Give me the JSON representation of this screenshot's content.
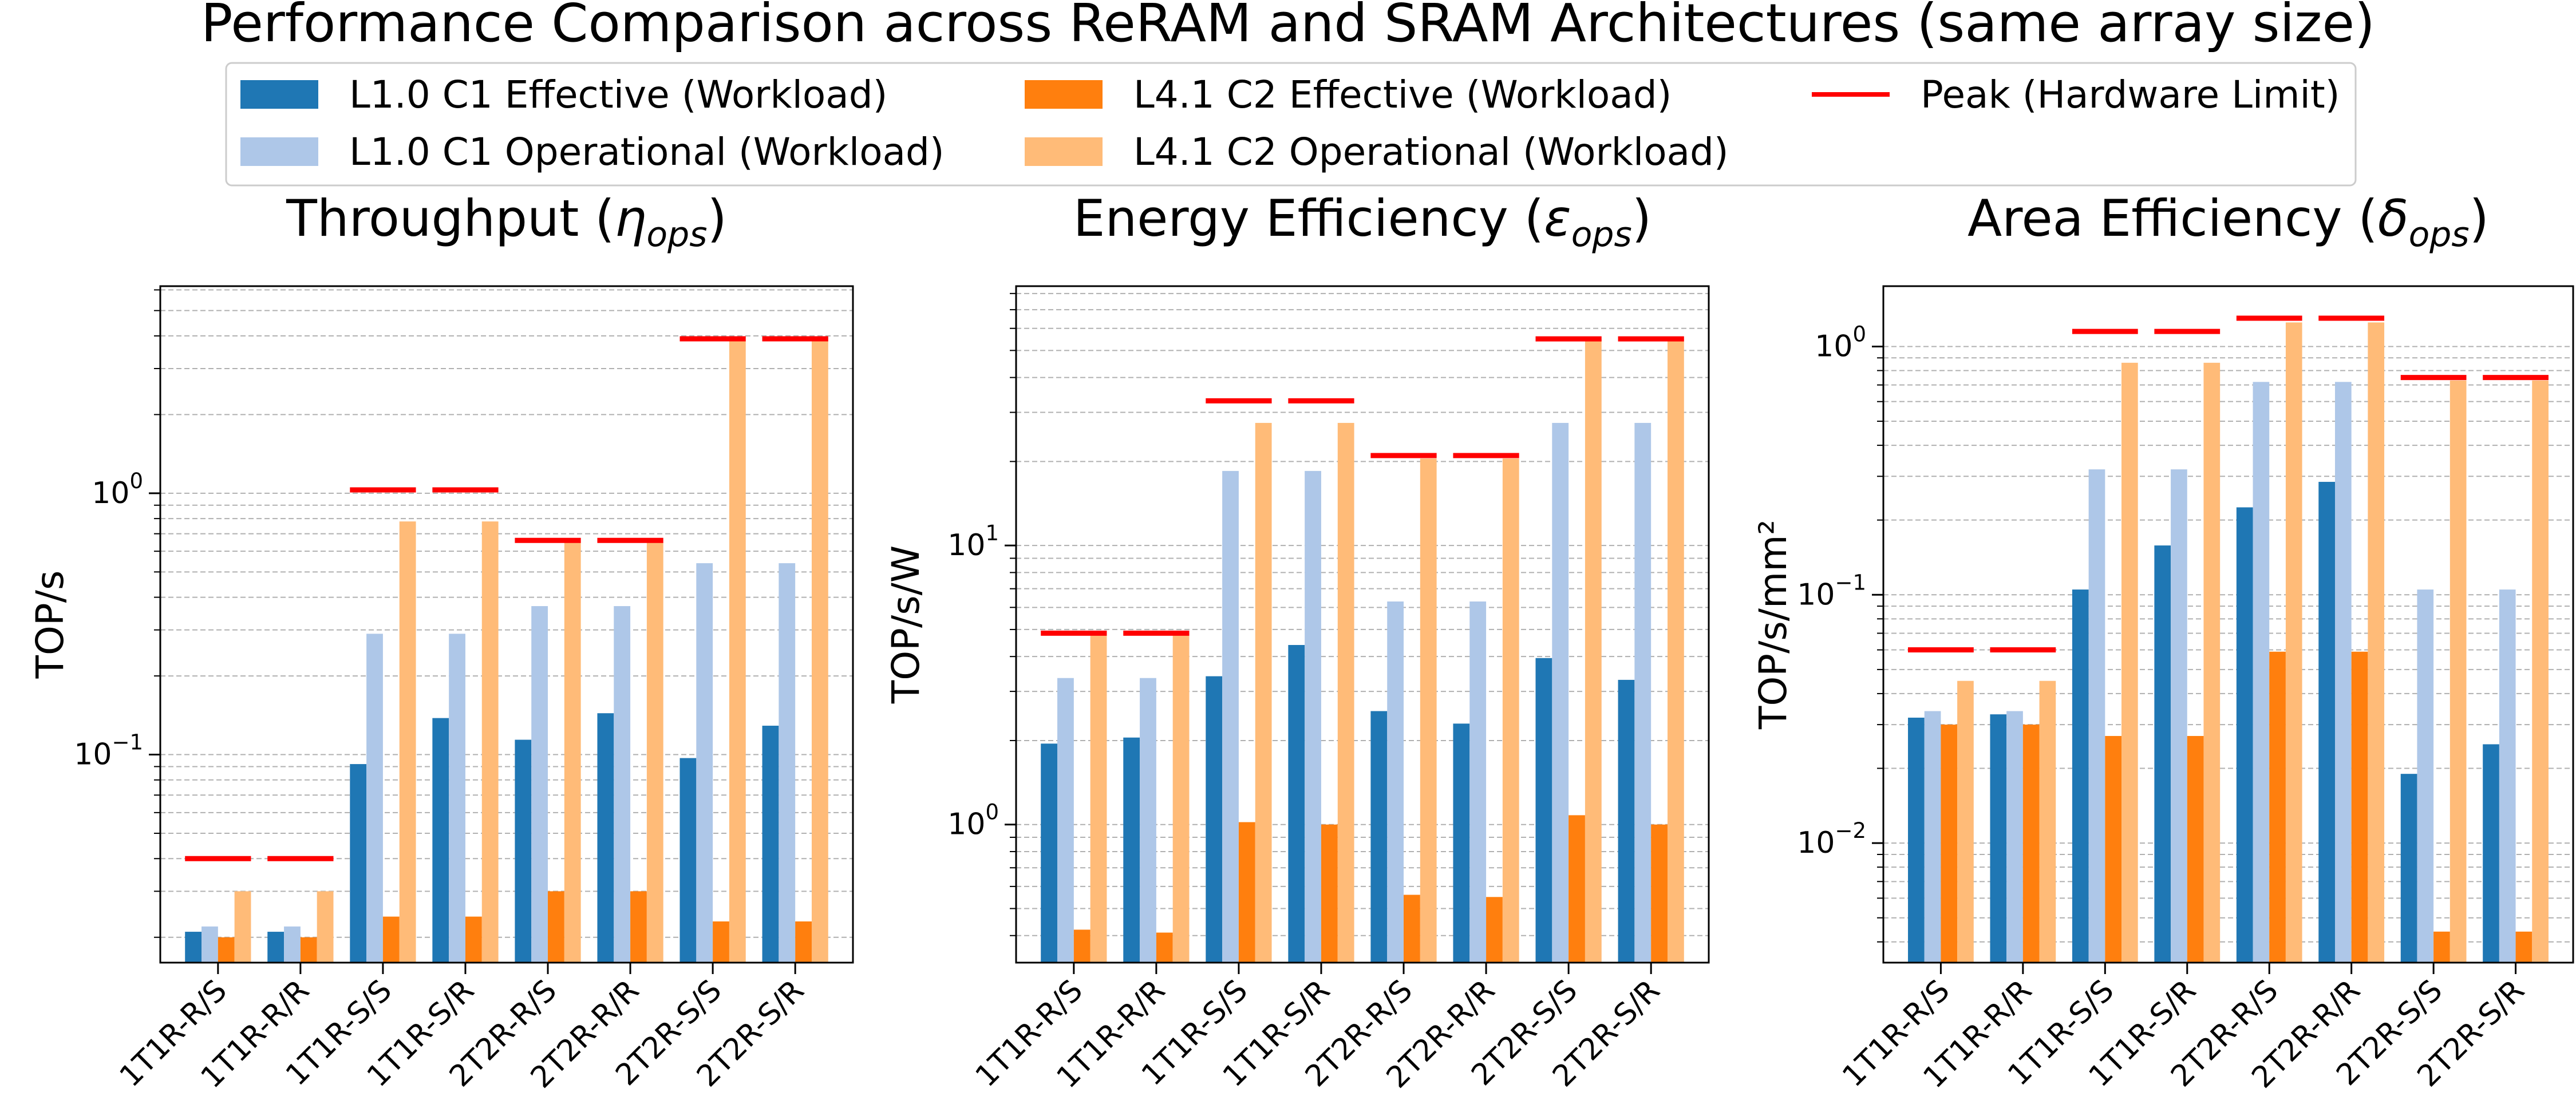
{
  "title": "Performance Comparison across ReRAM and SRAM Architectures (same array size)",
  "legend": {
    "placement": "top-center",
    "entries": [
      {
        "label": "L1.0 C1 Effective (Workload)",
        "color": "#1f77b4",
        "kind": "bar"
      },
      {
        "label": "L1.0 C1 Operational (Workload)",
        "color": "#aec7e8",
        "kind": "bar"
      },
      {
        "label": "L4.1 C2 Effective (Workload)",
        "color": "#ff7f0e",
        "kind": "bar"
      },
      {
        "label": "L4.1 C2 Operational (Workload)",
        "color": "#ffbb78",
        "kind": "bar"
      },
      {
        "label": "Peak (Hardware Limit)",
        "color": "#ff0000",
        "kind": "line"
      }
    ]
  },
  "chart_data": [
    {
      "type": "bar",
      "title_main": "Throughput (",
      "title_symbol": "η",
      "title_sub": "ops",
      "title_close": ")",
      "ylabel": "TOP/s",
      "yscale": "log",
      "ylim": [
        0.016,
        6.2
      ],
      "yticks": [
        {
          "value": 0.1,
          "base": "10",
          "exp": "−1"
        },
        {
          "value": 1,
          "base": "10",
          "exp": "0"
        }
      ],
      "categories": [
        "1T1R-R/S",
        "1T1R-R/R",
        "1T1R-S/S",
        "1T1R-S/R",
        "2T2R-R/S",
        "2T2R-R/R",
        "2T2R-S/S",
        "2T2R-S/R"
      ],
      "series": [
        {
          "name": "L1.0 C1 Effective (Workload)",
          "values": [
            0.021,
            0.021,
            0.092,
            0.138,
            0.114,
            0.144,
            0.097,
            0.129
          ]
        },
        {
          "name": "L1.0 C1 Operational (Workload)",
          "values": [
            0.022,
            0.022,
            0.29,
            0.29,
            0.37,
            0.37,
            0.54,
            0.54
          ]
        },
        {
          "name": "L4.1 C2 Effective (Workload)",
          "values": [
            0.02,
            0.02,
            0.024,
            0.024,
            0.03,
            0.03,
            0.023,
            0.023
          ]
        },
        {
          "name": "L4.1 C2 Operational (Workload)",
          "values": [
            0.03,
            0.03,
            0.78,
            0.78,
            0.65,
            0.65,
            3.85,
            3.85
          ]
        }
      ],
      "peak": [
        0.04,
        0.04,
        1.03,
        1.03,
        0.66,
        0.66,
        3.9,
        3.9
      ]
    },
    {
      "type": "bar",
      "title_main": "Energy Efficiency (",
      "title_symbol": "ε",
      "title_sub": "ops",
      "title_close": ")",
      "ylabel": "TOP/s/W",
      "yscale": "log",
      "ylim": [
        0.32,
        85
      ],
      "yticks": [
        {
          "value": 1,
          "base": "10",
          "exp": "0"
        },
        {
          "value": 10,
          "base": "10",
          "exp": "1"
        }
      ],
      "categories": [
        "1T1R-R/S",
        "1T1R-R/R",
        "1T1R-S/S",
        "1T1R-S/R",
        "2T2R-R/S",
        "2T2R-R/R",
        "2T2R-S/S",
        "2T2R-S/R"
      ],
      "series": [
        {
          "name": "L1.0 C1 Effective (Workload)",
          "values": [
            1.95,
            2.05,
            3.4,
            4.4,
            2.55,
            2.3,
            3.95,
            3.3
          ]
        },
        {
          "name": "L1.0 C1 Operational (Workload)",
          "values": [
            3.35,
            3.35,
            18.5,
            18.5,
            6.3,
            6.3,
            27.5,
            27.5
          ]
        },
        {
          "name": "L4.1 C2 Effective (Workload)",
          "values": [
            0.42,
            0.41,
            1.02,
            1.0,
            0.56,
            0.55,
            1.08,
            1.0
          ]
        },
        {
          "name": "L4.1 C2 Operational (Workload)",
          "values": [
            4.8,
            4.8,
            27.5,
            27.5,
            20.5,
            20.5,
            55,
            55
          ]
        }
      ],
      "peak": [
        4.85,
        4.85,
        33,
        33,
        21,
        21,
        55,
        55
      ]
    },
    {
      "type": "bar",
      "title_main": "Area Efficiency (",
      "title_symbol": "δ",
      "title_sub": "ops",
      "title_close": ")",
      "ylabel": "TOP/s/mm²",
      "yscale": "log",
      "ylim": [
        0.0033,
        1.75
      ],
      "yticks": [
        {
          "value": 0.01,
          "base": "10",
          "exp": "−2"
        },
        {
          "value": 0.1,
          "base": "10",
          "exp": "−1"
        },
        {
          "value": 1,
          "base": "10",
          "exp": "0"
        }
      ],
      "categories": [
        "1T1R-R/S",
        "1T1R-R/R",
        "1T1R-S/S",
        "1T1R-S/R",
        "2T2R-R/S",
        "2T2R-R/R",
        "2T2R-S/S",
        "2T2R-S/R"
      ],
      "series": [
        {
          "name": "L1.0 C1 Effective (Workload)",
          "values": [
            0.032,
            0.033,
            0.105,
            0.158,
            0.225,
            0.285,
            0.019,
            0.025
          ]
        },
        {
          "name": "L1.0 C1 Operational (Workload)",
          "values": [
            0.034,
            0.034,
            0.32,
            0.32,
            0.72,
            0.72,
            0.105,
            0.105
          ]
        },
        {
          "name": "L4.1 C2 Effective (Workload)",
          "values": [
            0.03,
            0.03,
            0.027,
            0.027,
            0.059,
            0.059,
            0.0044,
            0.0044
          ]
        },
        {
          "name": "L4.1 C2 Operational (Workload)",
          "values": [
            0.045,
            0.045,
            0.86,
            0.86,
            1.25,
            1.25,
            0.73,
            0.73
          ]
        }
      ],
      "peak": [
        0.06,
        0.06,
        1.15,
        1.15,
        1.3,
        1.3,
        0.75,
        0.75
      ]
    }
  ]
}
